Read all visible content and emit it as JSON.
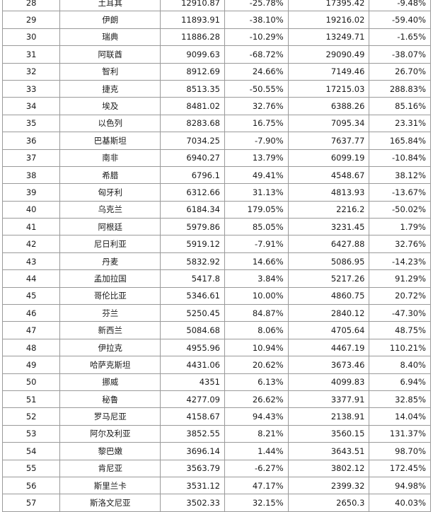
{
  "table": {
    "rows": [
      [
        "28",
        "土耳其",
        "12910.87",
        "-25.78%",
        "17395.42",
        "-9.48%"
      ],
      [
        "29",
        "伊朗",
        "11893.91",
        "-38.10%",
        "19216.02",
        "-59.40%"
      ],
      [
        "30",
        "瑞典",
        "11886.28",
        "-10.29%",
        "13249.71",
        "-1.65%"
      ],
      [
        "31",
        "阿联酋",
        "9099.63",
        "-68.72%",
        "29090.49",
        "-38.07%"
      ],
      [
        "32",
        "智利",
        "8912.69",
        "24.66%",
        "7149.46",
        "26.70%"
      ],
      [
        "33",
        "捷克",
        "8513.35",
        "-50.55%",
        "17215.03",
        "288.83%"
      ],
      [
        "34",
        "埃及",
        "8481.02",
        "32.76%",
        "6388.26",
        "85.16%"
      ],
      [
        "35",
        "以色列",
        "8283.68",
        "16.75%",
        "7095.34",
        "23.31%"
      ],
      [
        "36",
        "巴基斯坦",
        "7034.25",
        "-7.90%",
        "7637.77",
        "165.84%"
      ],
      [
        "37",
        "南非",
        "6940.27",
        "13.79%",
        "6099.19",
        "-10.84%"
      ],
      [
        "38",
        "希腊",
        "6796.1",
        "49.41%",
        "4548.67",
        "38.12%"
      ],
      [
        "39",
        "匈牙利",
        "6312.66",
        "31.13%",
        "4813.93",
        "-13.67%"
      ],
      [
        "40",
        "乌克兰",
        "6184.34",
        "179.05%",
        "2216.2",
        "-50.02%"
      ],
      [
        "41",
        "阿根廷",
        "5979.86",
        "85.05%",
        "3231.45",
        "1.79%"
      ],
      [
        "42",
        "尼日利亚",
        "5919.12",
        "-7.91%",
        "6427.88",
        "32.76%"
      ],
      [
        "43",
        "丹麦",
        "5832.92",
        "14.66%",
        "5086.95",
        "-14.23%"
      ],
      [
        "44",
        "孟加拉国",
        "5417.8",
        "3.84%",
        "5217.26",
        "91.29%"
      ],
      [
        "45",
        "哥伦比亚",
        "5346.61",
        "10.00%",
        "4860.75",
        "20.72%"
      ],
      [
        "46",
        "芬兰",
        "5250.45",
        "84.87%",
        "2840.12",
        "-47.30%"
      ],
      [
        "47",
        "新西兰",
        "5084.68",
        "8.06%",
        "4705.64",
        "48.75%"
      ],
      [
        "48",
        "伊拉克",
        "4955.96",
        "10.94%",
        "4467.19",
        "110.21%"
      ],
      [
        "49",
        "哈萨克斯坦",
        "4431.06",
        "20.62%",
        "3673.46",
        "8.40%"
      ],
      [
        "50",
        "挪威",
        "4351",
        "6.13%",
        "4099.83",
        "6.94%"
      ],
      [
        "51",
        "秘鲁",
        "4277.09",
        "26.62%",
        "3377.91",
        "32.85%"
      ],
      [
        "52",
        "罗马尼亚",
        "4158.67",
        "94.43%",
        "2138.91",
        "14.04%"
      ],
      [
        "53",
        "阿尔及利亚",
        "3852.55",
        "8.21%",
        "3560.15",
        "131.37%"
      ],
      [
        "54",
        "黎巴嫩",
        "3696.14",
        "1.44%",
        "3643.51",
        "98.70%"
      ],
      [
        "55",
        "肯尼亚",
        "3563.79",
        "-6.27%",
        "3802.12",
        "172.45%"
      ],
      [
        "56",
        "斯里兰卡",
        "3531.12",
        "47.17%",
        "2399.32",
        "94.98%"
      ],
      [
        "57",
        "斯洛文尼亚",
        "3502.33",
        "32.15%",
        "2650.3",
        "40.03%"
      ]
    ]
  }
}
